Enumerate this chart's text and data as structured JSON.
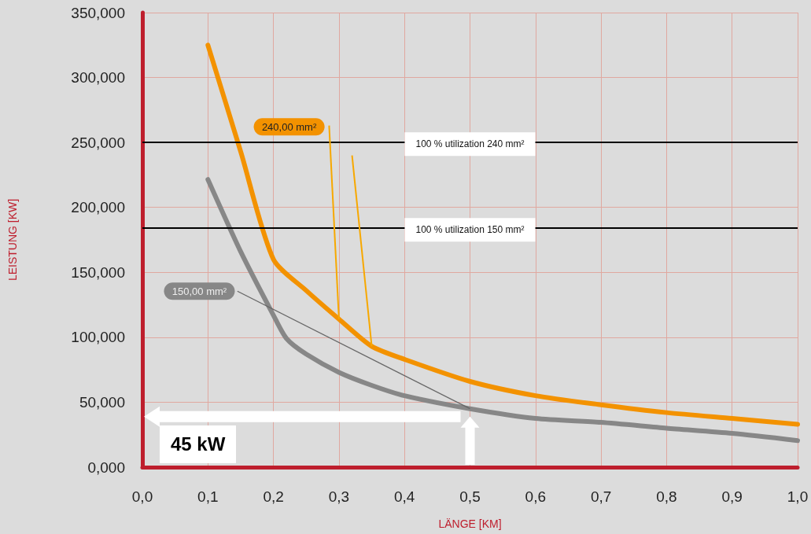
{
  "chart_data": {
    "type": "line",
    "xlabel": "LÄNGE [KM]",
    "ylabel": "LEISTUNG [KW]",
    "xlim": [
      0,
      1
    ],
    "ylim": [
      0,
      350
    ],
    "xticks": [
      {
        "value": 0,
        "label": "0,0"
      },
      {
        "value": 0.1,
        "label": "0,1"
      },
      {
        "value": 0.2,
        "label": "0,2"
      },
      {
        "value": 0.3,
        "label": "0,3"
      },
      {
        "value": 0.4,
        "label": "0,4"
      },
      {
        "value": 0.5,
        "label": "0,5"
      },
      {
        "value": 0.6,
        "label": "0,6"
      },
      {
        "value": 0.7,
        "label": "0,7"
      },
      {
        "value": 0.8,
        "label": "0,8"
      },
      {
        "value": 0.9,
        "label": "0,9"
      },
      {
        "value": 1,
        "label": "1,0"
      }
    ],
    "yticks": [
      {
        "value": 0,
        "label": "0,000"
      },
      {
        "value": 50,
        "label": "50,000"
      },
      {
        "value": 100,
        "label": "100,000"
      },
      {
        "value": 150,
        "label": "150,000"
      },
      {
        "value": 200,
        "label": "200,000"
      },
      {
        "value": 250,
        "label": "250,000"
      },
      {
        "value": 300,
        "label": "300,000"
      },
      {
        "value": 350,
        "label": "350,000"
      }
    ],
    "series": [
      {
        "name": "240,00 mm²",
        "color": "#f39200",
        "x": [
          0.1,
          0.15,
          0.2,
          0.25,
          0.3,
          0.35,
          0.4,
          0.5,
          0.6,
          0.7,
          0.8,
          0.9,
          1.0
        ],
        "values": [
          325,
          243,
          160,
          136,
          114,
          93,
          83,
          66,
          55,
          48,
          42,
          37.5,
          33
        ]
      },
      {
        "name": "150,00 mm²",
        "color": "#878787",
        "x": [
          0.1,
          0.15,
          0.2,
          0.22,
          0.25,
          0.3,
          0.35,
          0.4,
          0.5,
          0.6,
          0.7,
          0.8,
          0.9,
          1.0
        ],
        "values": [
          221.5,
          166,
          117,
          99,
          87,
          73,
          63,
          55,
          45,
          37.5,
          34.5,
          30,
          26,
          20.5
        ]
      }
    ],
    "ref_lines": [
      {
        "axis": "y",
        "value": 250,
        "label": "100 % utilization 240 mm²",
        "color": "#000000"
      },
      {
        "axis": "y",
        "value": 184,
        "label": "100 % utilization 150 mm²",
        "color": "#000000"
      }
    ],
    "annotations": [
      "45 kW"
    ],
    "grid": true,
    "legend": false,
    "marker": "none",
    "line_style": "solid"
  }
}
